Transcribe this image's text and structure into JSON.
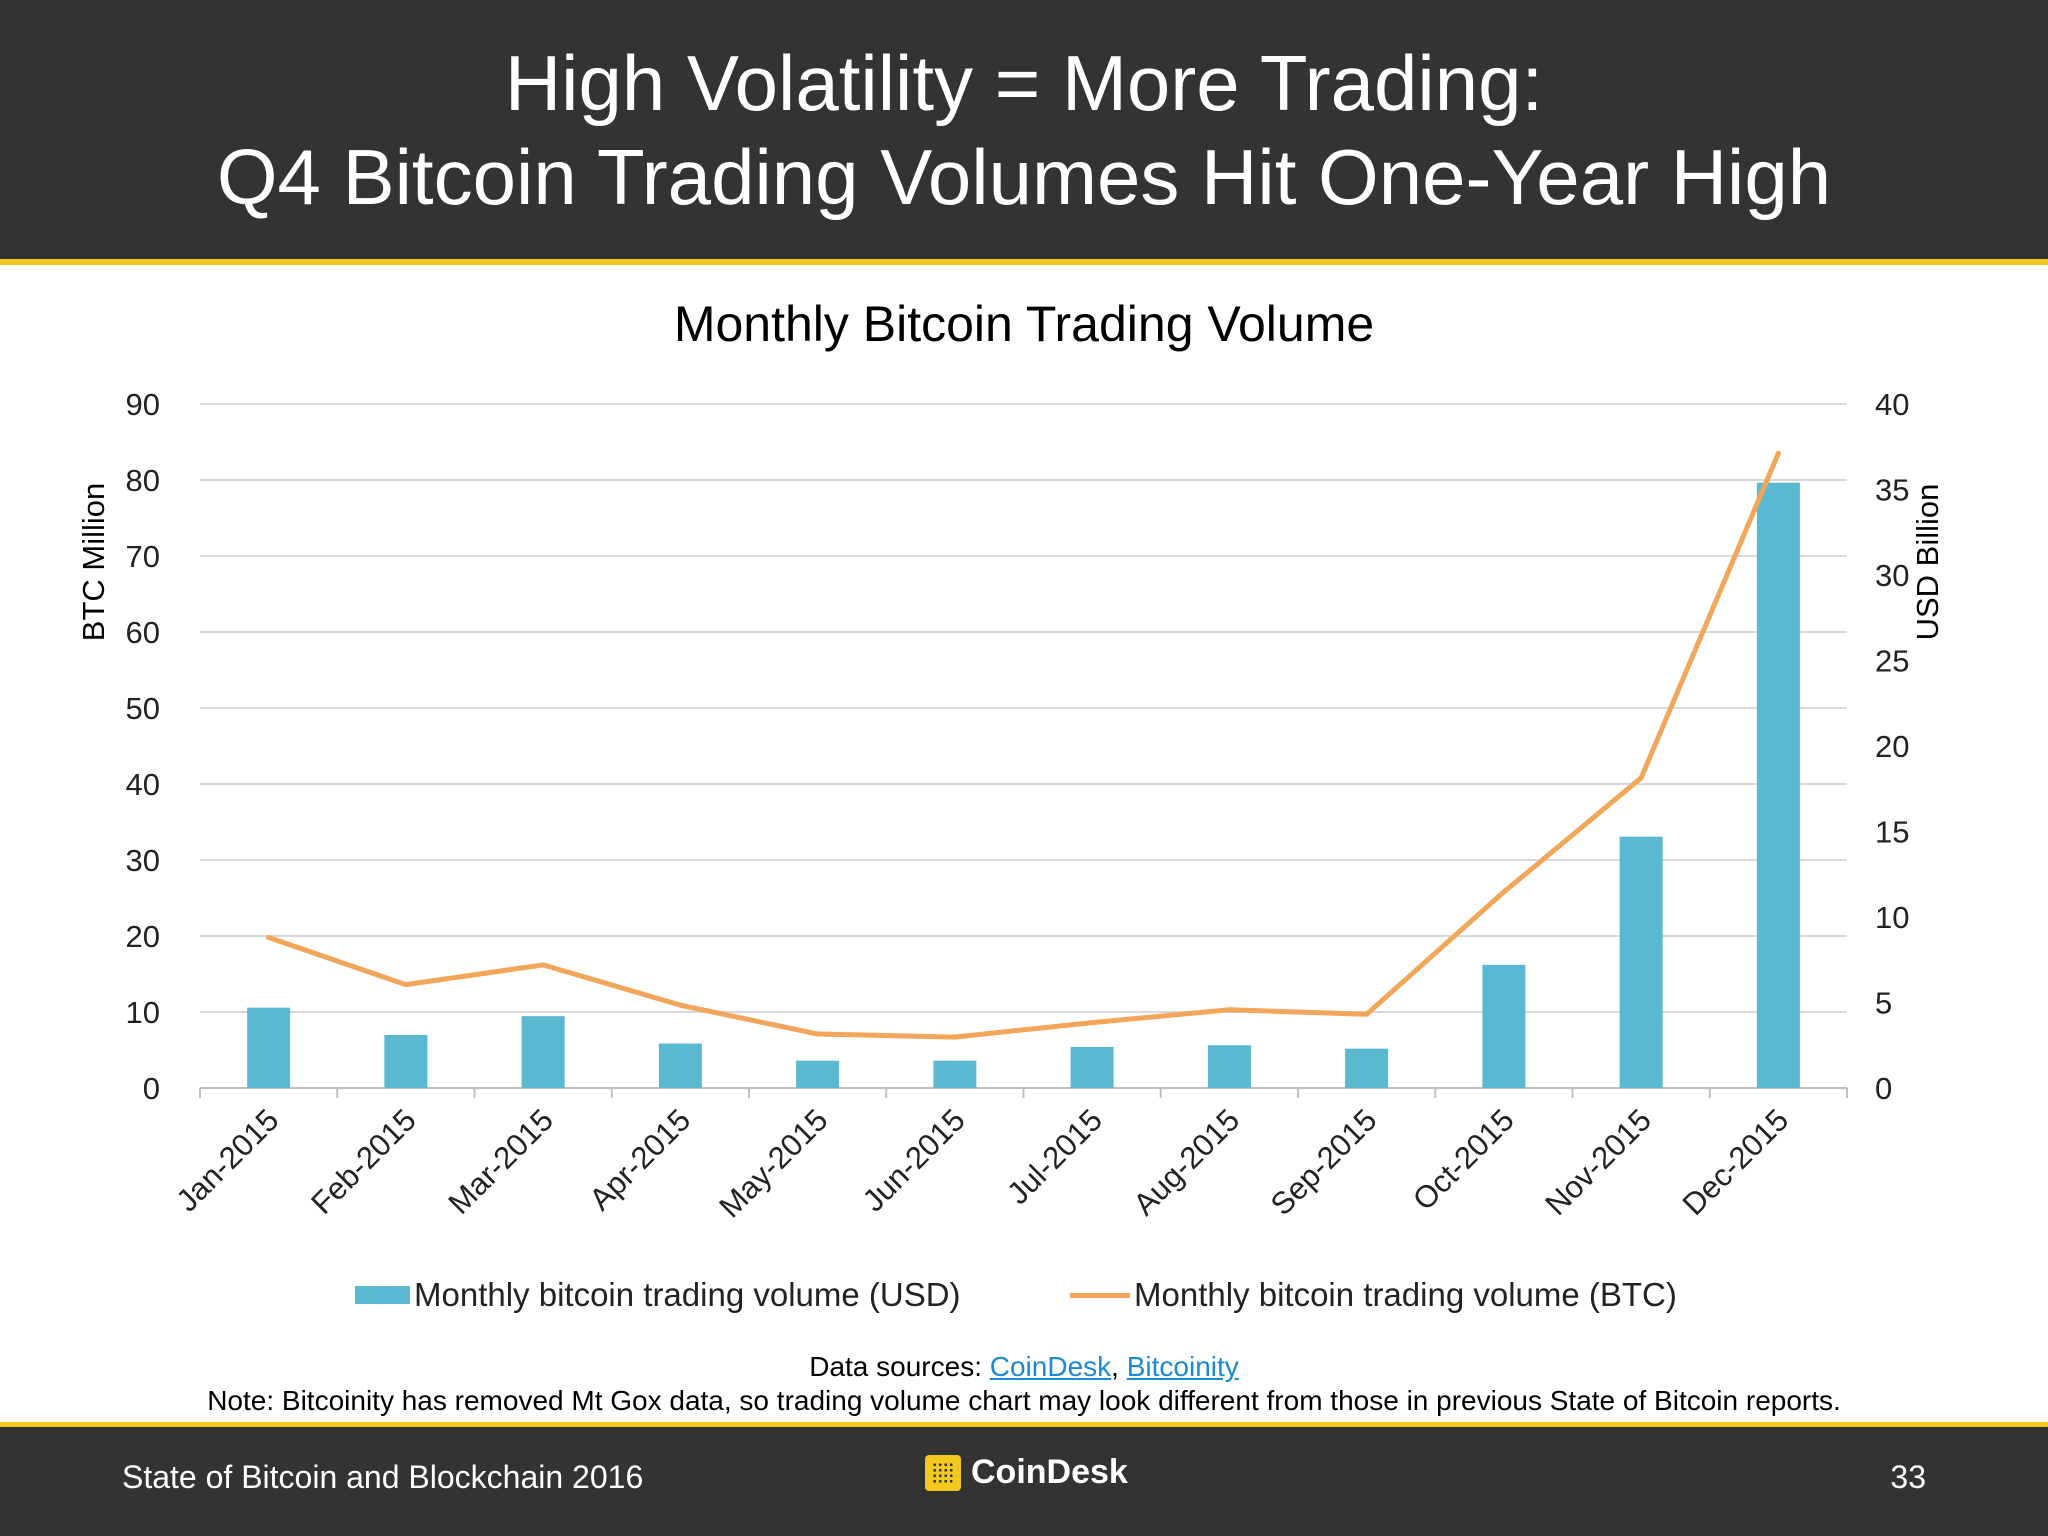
{
  "header": {
    "title_line1": "High Volatility = More Trading:",
    "title_line2": "Q4 Bitcoin Trading Volumes Hit One-Year High"
  },
  "chart_data": {
    "type": "bar",
    "title": "Monthly Bitcoin Trading Volume",
    "categories": [
      "Jan-2015",
      "Feb-2015",
      "Mar-2015",
      "Apr-2015",
      "May-2015",
      "Jun-2015",
      "Jul-2015",
      "Aug-2015",
      "Sep-2015",
      "Oct-2015",
      "Nov-2015",
      "Dec-2015"
    ],
    "ylabel_left": "BTC Million",
    "ylabel_right": "USD Billion",
    "ylim_left": [
      0,
      90
    ],
    "yticks_left": [
      0,
      10,
      20,
      30,
      40,
      50,
      60,
      70,
      80,
      90
    ],
    "ylim_right": [
      0,
      40
    ],
    "yticks_right": [
      0,
      5,
      10,
      15,
      20,
      25,
      30,
      35,
      40
    ],
    "grid": true,
    "legend_position": "bottom",
    "series": [
      {
        "name": "Monthly bitcoin trading volume (USD)",
        "type": "bar",
        "axis": "right",
        "color": "#5ab9d0",
        "values": [
          4.7,
          3.1,
          4.2,
          2.6,
          1.6,
          1.6,
          2.4,
          2.5,
          2.3,
          7.2,
          14.7,
          35.4
        ]
      },
      {
        "name": "Monthly bitcoin trading volume (BTC)",
        "type": "line",
        "axis": "left",
        "color": "#f2a65a",
        "values": [
          19.8,
          13.6,
          16.2,
          10.9,
          7.1,
          6.7,
          8.6,
          10.3,
          9.7,
          25.8,
          40.8,
          83.5
        ]
      }
    ]
  },
  "sources": {
    "prefix": "Data sources: ",
    "link1": "CoinDesk",
    "separator": ", ",
    "link2": "Bitcoinity",
    "note": "Note: Bitcoinity has removed Mt Gox data, so trading volume chart may look different from those in previous State of Bitcoin reports."
  },
  "footer": {
    "left": "State of Bitcoin and Blockchain 2016",
    "brand": "CoinDesk",
    "page_number": "33"
  }
}
